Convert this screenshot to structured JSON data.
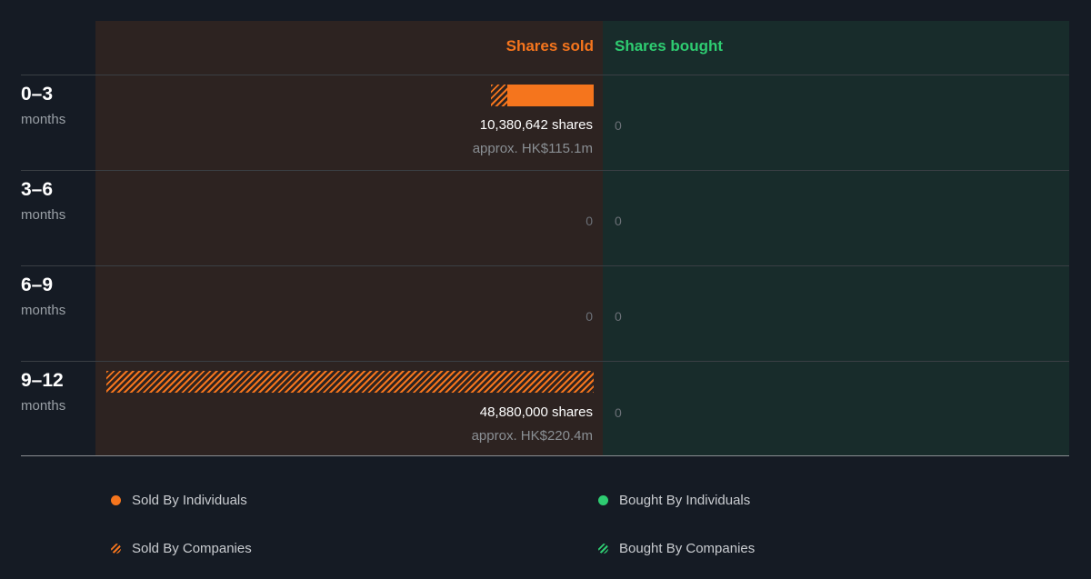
{
  "header": {
    "sold": "Shares sold",
    "bought": "Shares bought"
  },
  "colors": {
    "sold": "#f5751d",
    "bought": "#2ecc71"
  },
  "periods": [
    {
      "range": "0–3",
      "unit": "months",
      "sold_shares": "10,380,642 shares",
      "sold_approx": "approx. HK$115.1m",
      "sold_zero": "",
      "bought": "0"
    },
    {
      "range": "3–6",
      "unit": "months",
      "sold_shares": "",
      "sold_approx": "",
      "sold_zero": "0",
      "bought": "0"
    },
    {
      "range": "6–9",
      "unit": "months",
      "sold_shares": "",
      "sold_approx": "",
      "sold_zero": "0",
      "bought": "0"
    },
    {
      "range": "9–12",
      "unit": "months",
      "sold_shares": "48,880,000 shares",
      "sold_approx": "approx. HK$220.4m",
      "sold_zero": "",
      "bought": "0"
    }
  ],
  "legend": {
    "sold_individuals": "Sold By Individuals",
    "sold_companies": "Sold By Companies",
    "bought_individuals": "Bought By Individuals",
    "bought_companies": "Bought By Companies"
  },
  "chart_data": {
    "type": "bar",
    "orientation": "horizontal",
    "categories": [
      "0–3 months",
      "3–6 months",
      "6–9 months",
      "9–12 months"
    ],
    "series": [
      {
        "name": "Sold By Individuals",
        "values": [
          8700000,
          0,
          0,
          0
        ]
      },
      {
        "name": "Sold By Companies",
        "values": [
          1680642,
          0,
          0,
          48880000
        ]
      },
      {
        "name": "Bought By Individuals",
        "values": [
          0,
          0,
          0,
          0
        ]
      },
      {
        "name": "Bought By Companies",
        "values": [
          0,
          0,
          0,
          0
        ]
      }
    ],
    "totals_sold": [
      10380642,
      0,
      0,
      48880000
    ],
    "totals_bought": [
      0,
      0,
      0,
      0
    ],
    "xlim": [
      0,
      48880000
    ],
    "legend_position": "bottom"
  }
}
